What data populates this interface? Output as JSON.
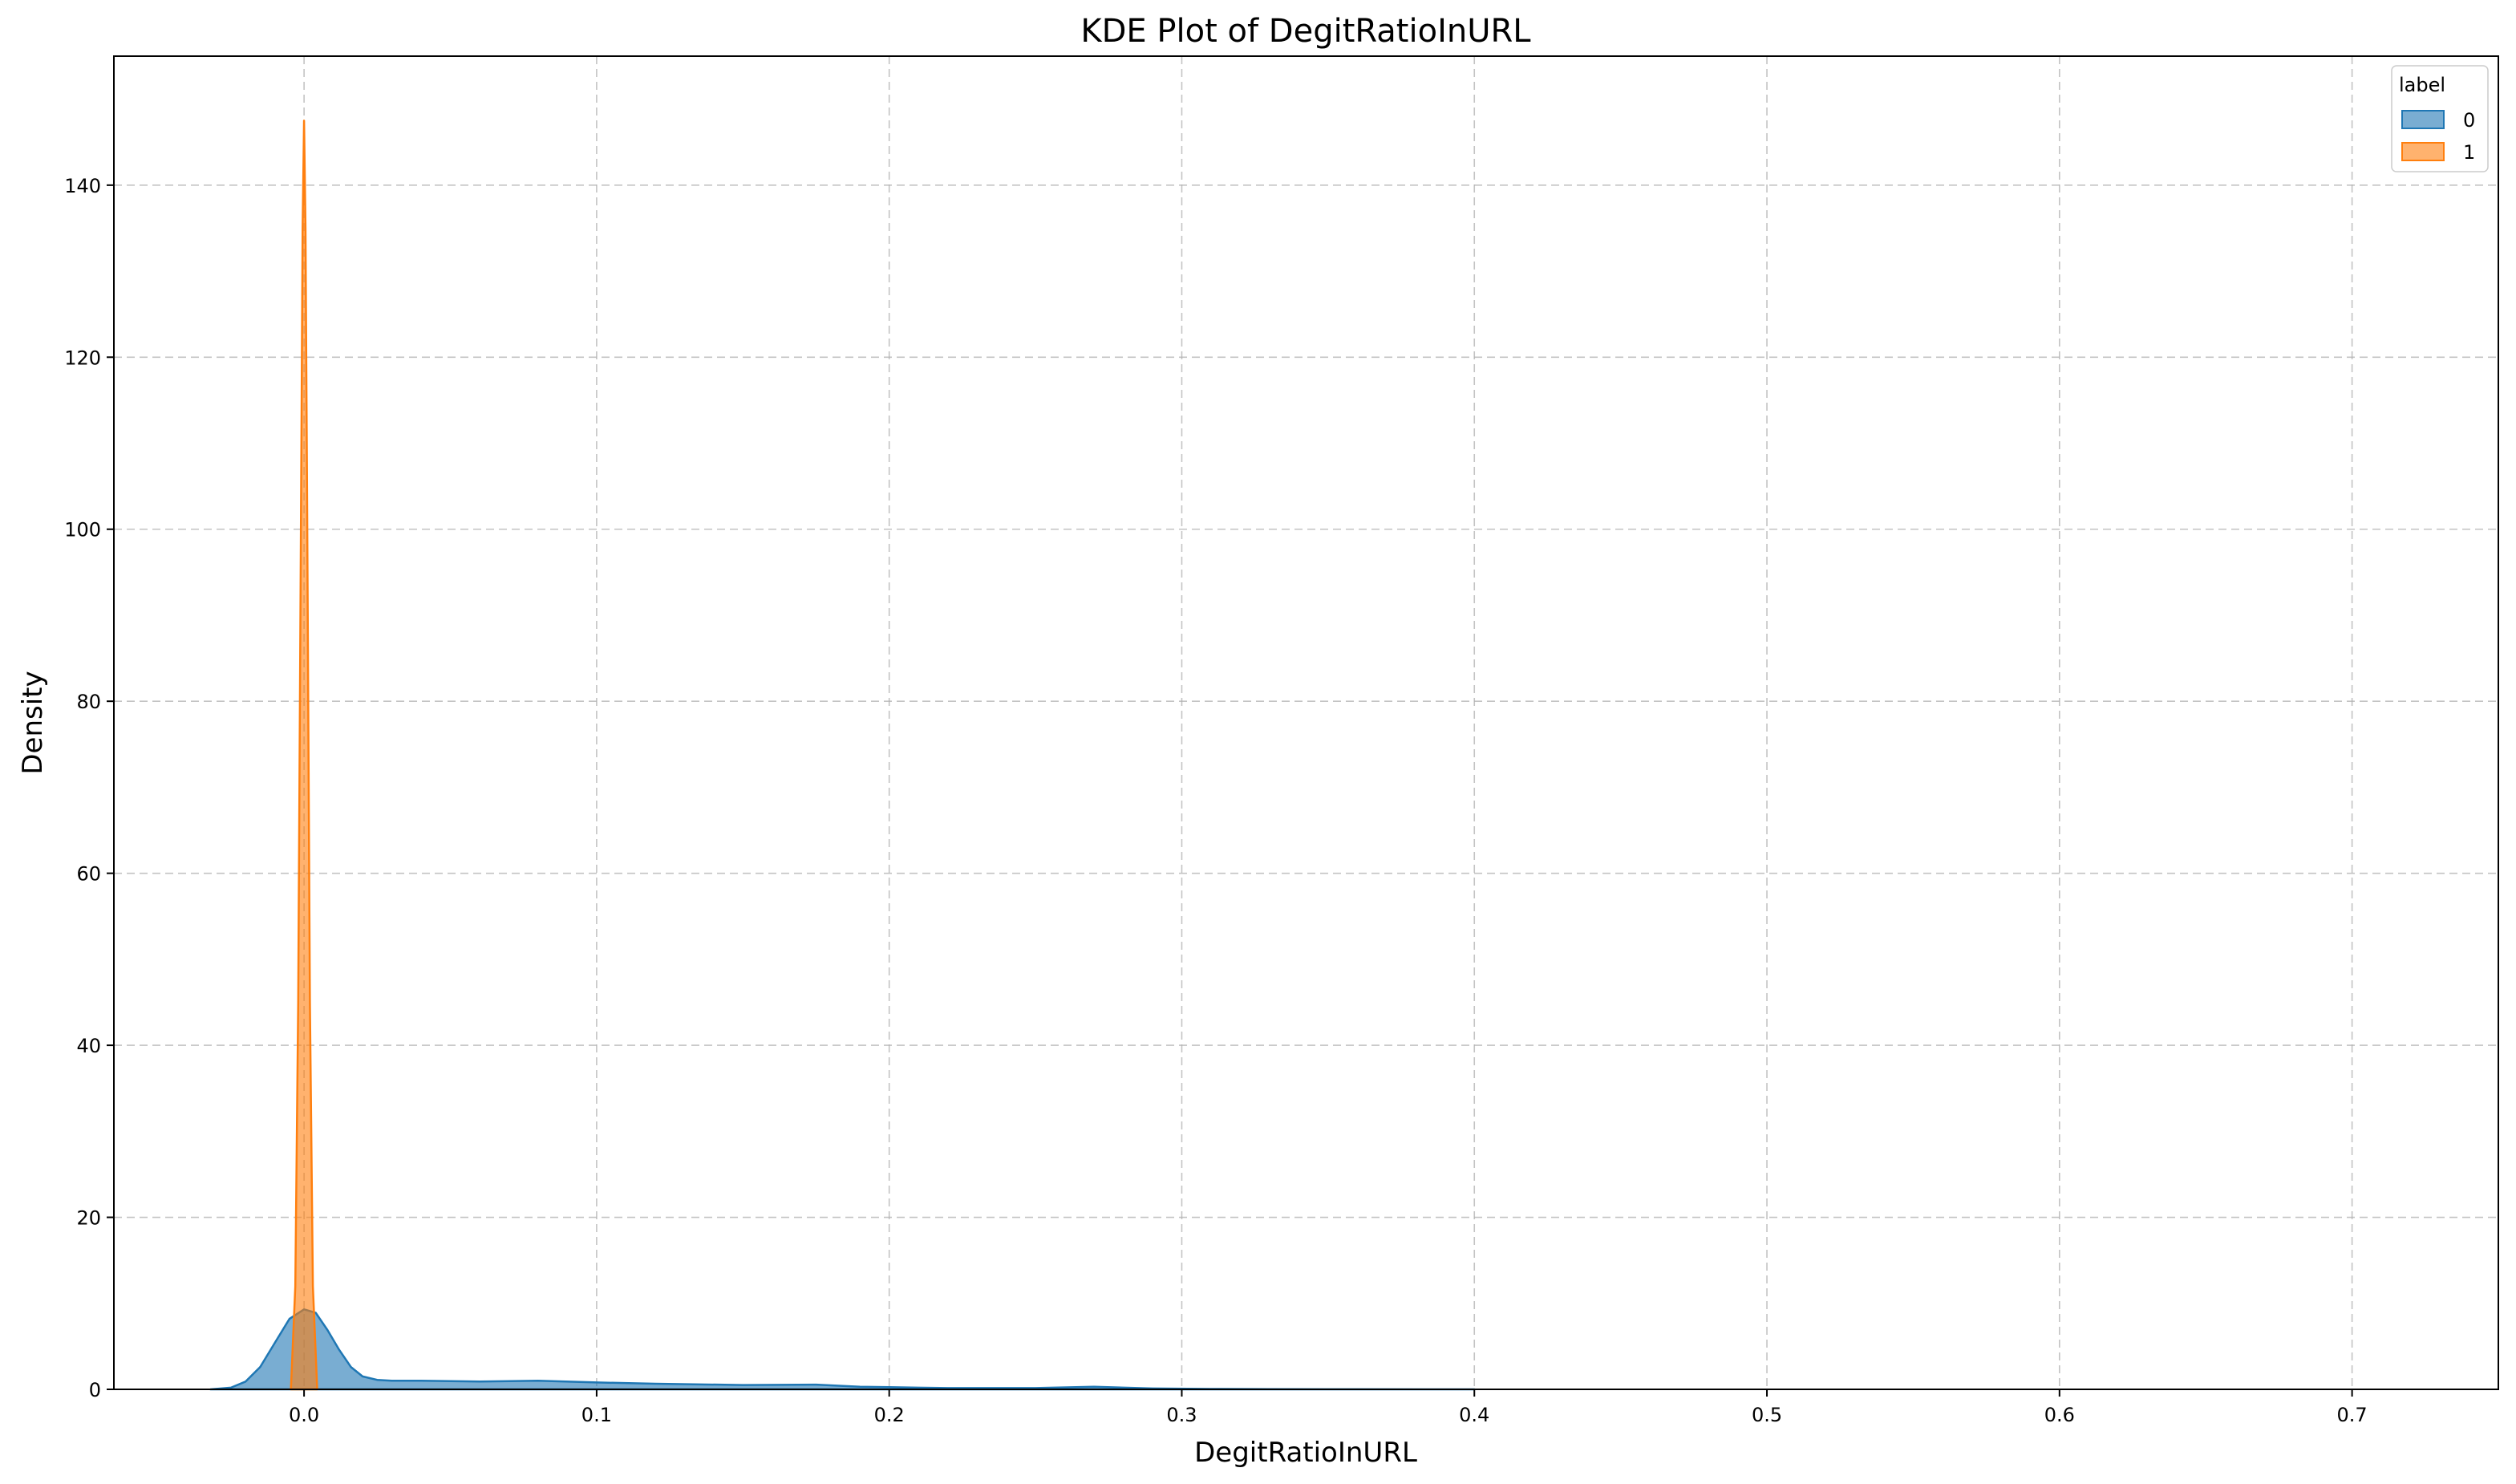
{
  "chart_data": {
    "type": "area",
    "title": "KDE Plot of DegitRatioInURL",
    "xlabel": "DegitRatioInURL",
    "ylabel": "Density",
    "xlim": [
      -0.065,
      0.75
    ],
    "ylim": [
      0,
      155
    ],
    "xticks": [
      0.0,
      0.1,
      0.2,
      0.3,
      0.4,
      0.5,
      0.6,
      0.7
    ],
    "xtick_labels": [
      "0.0",
      "0.1",
      "0.2",
      "0.3",
      "0.4",
      "0.5",
      "0.6",
      "0.7"
    ],
    "yticks": [
      0,
      20,
      40,
      60,
      80,
      100,
      120,
      140
    ],
    "ytick_labels": [
      "0",
      "20",
      "40",
      "60",
      "80",
      "100",
      "120",
      "140"
    ],
    "grid": true,
    "legend": {
      "title": "label",
      "placement": "top-right"
    },
    "series": [
      {
        "name": "0",
        "color": "#1f77b4",
        "x": [
          -0.032,
          -0.025,
          -0.02,
          -0.015,
          -0.01,
          -0.005,
          0.0,
          0.004,
          0.008,
          0.012,
          0.016,
          0.02,
          0.025,
          0.03,
          0.04,
          0.05,
          0.06,
          0.08,
          0.1,
          0.12,
          0.15,
          0.175,
          0.19,
          0.2,
          0.22,
          0.25,
          0.27,
          0.29,
          0.31,
          0.33,
          0.36,
          0.4
        ],
        "y": [
          0.0,
          0.2,
          0.9,
          2.6,
          5.4,
          8.2,
          9.3,
          8.9,
          6.9,
          4.6,
          2.6,
          1.5,
          1.1,
          1.0,
          1.0,
          0.95,
          0.9,
          1.0,
          0.8,
          0.65,
          0.5,
          0.55,
          0.3,
          0.25,
          0.15,
          0.15,
          0.3,
          0.1,
          0.05,
          0.02,
          0.01,
          0.0
        ]
      },
      {
        "name": "1",
        "color": "#ff7f0e",
        "x": [
          -0.0045,
          -0.003,
          -0.002,
          -0.001,
          -0.0005,
          0.0,
          0.0005,
          0.001,
          0.002,
          0.003,
          0.0045
        ],
        "y": [
          0.0,
          12.0,
          45.0,
          105.0,
          135.0,
          147.5,
          135.0,
          105.0,
          45.0,
          12.0,
          0.0
        ]
      }
    ]
  }
}
